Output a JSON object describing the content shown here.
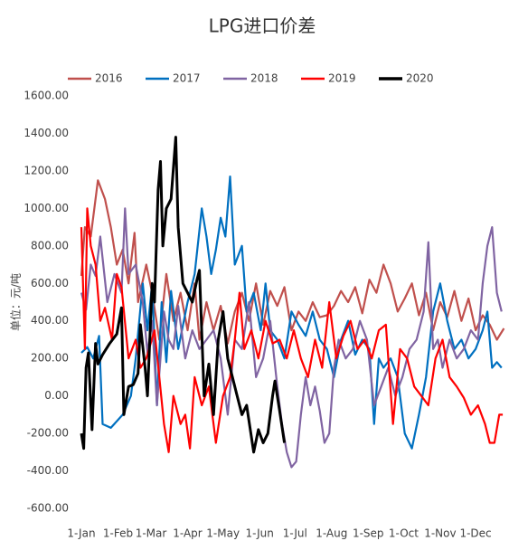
{
  "chart_data": {
    "type": "line",
    "title": "LPG进口价差",
    "y_label": "单位：元/吨",
    "xlim": [
      0,
      360
    ],
    "ylim": [
      -600,
      1600
    ],
    "xticks": [
      {
        "value": 0,
        "label": "1-Jan"
      },
      {
        "value": 31,
        "label": "1-Feb"
      },
      {
        "value": 59,
        "label": "1-Mar"
      },
      {
        "value": 90,
        "label": "1-Apr"
      },
      {
        "value": 120,
        "label": "1-May"
      },
      {
        "value": 151,
        "label": "1-Jun"
      },
      {
        "value": 181,
        "label": "1-Jul"
      },
      {
        "value": 212,
        "label": "1-Aug"
      },
      {
        "value": 243,
        "label": "1-Sep"
      },
      {
        "value": 273,
        "label": "1-Oct"
      },
      {
        "value": 304,
        "label": "1-Nov"
      },
      {
        "value": 334,
        "label": "1-Dec"
      }
    ],
    "yticks": [
      {
        "value": -600,
        "label": "-600.00"
      },
      {
        "value": -400,
        "label": "-400.00"
      },
      {
        "value": -200,
        "label": "-200.00"
      },
      {
        "value": 0,
        "label": "0.00"
      },
      {
        "value": 200,
        "label": "200.00"
      },
      {
        "value": 400,
        "label": "400.00"
      },
      {
        "value": 600,
        "label": "600.00"
      },
      {
        "value": 800,
        "label": "800.00"
      },
      {
        "value": 1000,
        "label": "1000.00"
      },
      {
        "value": 1200,
        "label": "1200.00"
      },
      {
        "value": 1400,
        "label": "1400.00"
      },
      {
        "value": 1600,
        "label": "1600.00"
      }
    ],
    "legend": "top",
    "series": [
      {
        "name": "2016",
        "color": "#c0504d",
        "x": [
          0,
          3,
          8,
          14,
          20,
          25,
          30,
          35,
          40,
          45,
          48,
          55,
          60,
          66,
          72,
          78,
          84,
          90,
          96,
          100,
          106,
          112,
          118,
          124,
          130,
          136,
          142,
          148,
          154,
          160,
          166,
          172,
          178,
          184,
          190,
          196,
          202,
          208,
          214,
          220,
          226,
          232,
          238,
          244,
          250,
          256,
          262,
          268,
          274,
          280,
          286,
          292,
          298,
          304,
          310,
          316,
          322,
          328,
          334,
          340,
          346,
          352,
          358
        ],
        "values": [
          640,
          900,
          850,
          1150,
          1050,
          900,
          700,
          780,
          600,
          870,
          500,
          700,
          550,
          300,
          650,
          400,
          550,
          350,
          600,
          300,
          500,
          350,
          480,
          280,
          450,
          550,
          400,
          600,
          380,
          560,
          480,
          580,
          350,
          450,
          400,
          500,
          420,
          430,
          480,
          560,
          500,
          580,
          440,
          620,
          550,
          700,
          600,
          450,
          520,
          600,
          430,
          550,
          350,
          500,
          420,
          560,
          400,
          520,
          350,
          430,
          380,
          300,
          360
        ]
      },
      {
        "name": "2017",
        "color": "#0070c0",
        "x": [
          0,
          5,
          10,
          15,
          18,
          25,
          35,
          42,
          46,
          52,
          56,
          60,
          64,
          68,
          72,
          76,
          82,
          90,
          96,
          102,
          106,
          110,
          114,
          118,
          122,
          126,
          130,
          136,
          140,
          146,
          152,
          156,
          160,
          166,
          172,
          178,
          184,
          190,
          196,
          202,
          208,
          214,
          220,
          226,
          232,
          238,
          244,
          248,
          252,
          256,
          262,
          268,
          274,
          280,
          286,
          292,
          298,
          304,
          310,
          316,
          322,
          328,
          334,
          340,
          344,
          348,
          352,
          356
        ],
        "values": [
          230,
          260,
          200,
          320,
          -150,
          -170,
          -100,
          0,
          200,
          600,
          350,
          600,
          -50,
          500,
          180,
          560,
          250,
          500,
          650,
          1000,
          850,
          650,
          780,
          950,
          850,
          1170,
          700,
          800,
          450,
          550,
          350,
          600,
          350,
          300,
          200,
          450,
          380,
          320,
          450,
          300,
          250,
          100,
          300,
          400,
          220,
          300,
          250,
          -150,
          200,
          150,
          200,
          100,
          -200,
          -280,
          -100,
          100,
          450,
          600,
          400,
          250,
          300,
          200,
          250,
          350,
          450,
          150,
          180,
          150
        ]
      },
      {
        "name": "2018",
        "color": "#8064a2",
        "x": [
          0,
          4,
          8,
          12,
          16,
          22,
          28,
          34,
          37,
          40,
          46,
          52,
          56,
          60,
          64,
          70,
          74,
          78,
          82,
          88,
          94,
          100,
          106,
          112,
          118,
          124,
          130,
          136,
          142,
          148,
          154,
          160,
          166,
          170,
          174,
          178,
          182,
          186,
          190,
          194,
          198,
          202,
          206,
          210,
          214,
          218,
          224,
          230,
          236,
          242,
          248,
          254,
          260,
          266,
          272,
          278,
          284,
          290,
          294,
          298,
          302,
          306,
          312,
          318,
          324,
          330,
          336,
          340,
          344,
          348,
          352,
          356
        ],
        "values": [
          550,
          460,
          700,
          640,
          850,
          500,
          650,
          550,
          1000,
          650,
          700,
          500,
          230,
          400,
          -50,
          450,
          300,
          250,
          480,
          200,
          350,
          250,
          300,
          350,
          200,
          -100,
          300,
          250,
          500,
          100,
          200,
          400,
          50,
          -150,
          -300,
          -380,
          -350,
          -100,
          100,
          -50,
          50,
          -80,
          -250,
          -200,
          150,
          300,
          200,
          250,
          400,
          300,
          -50,
          50,
          150,
          0,
          100,
          250,
          300,
          450,
          820,
          250,
          300,
          150,
          300,
          200,
          250,
          350,
          300,
          600,
          800,
          900,
          550,
          450
        ]
      },
      {
        "name": "2019",
        "color": "#ff0000",
        "x": [
          0,
          3,
          5,
          8,
          12,
          16,
          20,
          26,
          30,
          34,
          40,
          46,
          50,
          55,
          62,
          66,
          70,
          74,
          78,
          84,
          88,
          92,
          96,
          102,
          108,
          114,
          120,
          126,
          130,
          134,
          138,
          144,
          150,
          156,
          162,
          168,
          174,
          180,
          186,
          192,
          198,
          204,
          210,
          216,
          222,
          228,
          234,
          240,
          246,
          252,
          258,
          264,
          270,
          276,
          282,
          288,
          294,
          300,
          306,
          312,
          318,
          324,
          330,
          336,
          342,
          346,
          350,
          354,
          357
        ],
        "values": [
          900,
          250,
          1000,
          800,
          700,
          400,
          470,
          300,
          650,
          580,
          200,
          300,
          150,
          200,
          350,
          100,
          -150,
          -300,
          0,
          -150,
          -100,
          -280,
          100,
          -50,
          50,
          -250,
          0,
          100,
          300,
          550,
          250,
          350,
          200,
          400,
          280,
          300,
          200,
          350,
          200,
          100,
          300,
          150,
          500,
          200,
          320,
          400,
          250,
          300,
          200,
          350,
          380,
          -150,
          250,
          200,
          50,
          0,
          -50,
          200,
          300,
          100,
          50,
          -10,
          -100,
          -50,
          -150,
          -250,
          -250,
          -100,
          -100
        ]
      },
      {
        "name": "2020",
        "color": "#000000",
        "x": [
          0,
          2,
          4,
          6,
          9,
          12,
          14,
          18,
          24,
          30,
          34,
          36,
          40,
          44,
          48,
          50,
          54,
          56,
          60,
          62,
          65,
          67,
          69,
          72,
          76,
          80,
          82,
          86,
          90,
          94,
          98,
          100,
          104,
          108,
          112,
          116,
          120,
          124,
          128,
          132,
          136,
          140,
          146,
          150,
          154,
          158,
          162,
          164,
          168,
          172
        ],
        "values": [
          -200,
          -280,
          150,
          230,
          -180,
          280,
          170,
          220,
          280,
          330,
          470,
          -100,
          50,
          60,
          120,
          380,
          150,
          0,
          600,
          500,
          1100,
          1250,
          800,
          1000,
          1050,
          1380,
          900,
          600,
          550,
          500,
          620,
          670,
          0,
          170,
          -100,
          300,
          450,
          200,
          100,
          0,
          -100,
          -50,
          -300,
          -180,
          -250,
          -200,
          0,
          80,
          -80,
          -250
        ]
      }
    ]
  }
}
